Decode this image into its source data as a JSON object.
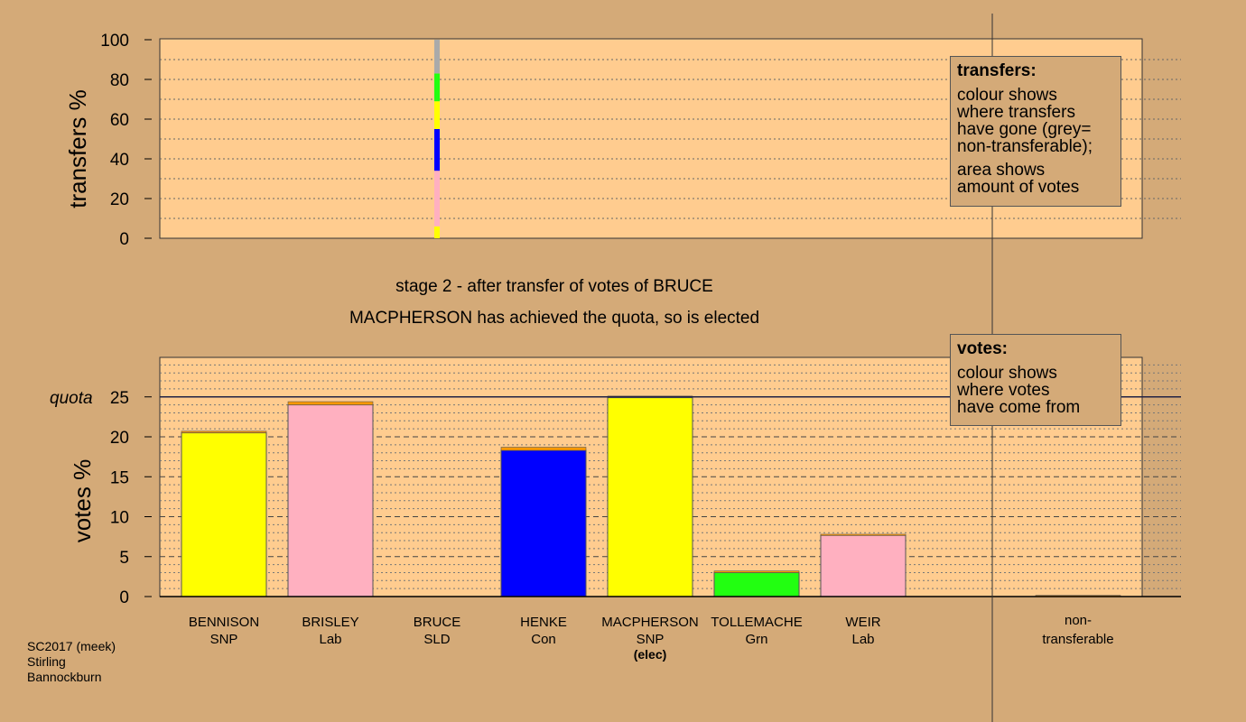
{
  "stage_title": "stage 2 - after transfer of votes of BRUCE",
  "stage_subtitle": "MACPHERSON has achieved the quota, so is elected",
  "legend_transfers": {
    "heading": "transfers:",
    "lines_a": [
      "colour shows",
      "where transfers",
      "have gone (grey=",
      "non-transferable);"
    ],
    "lines_b": [
      "area shows",
      "amount of votes"
    ]
  },
  "legend_votes": {
    "heading": "votes:",
    "lines": [
      "colour shows",
      "where votes",
      "have come from"
    ]
  },
  "footer": [
    "SC2017 (meek)",
    "Stirling",
    "Bannockburn"
  ],
  "colors": {
    "background": "#d4aa78",
    "plot": "#ffcc8f",
    "snp": "#ffff00",
    "lab": "#ffb0c0",
    "con": "#0000ff",
    "grn": "#22ff11",
    "ld": "#ff9900",
    "nontransferable": "#aaaaaa"
  },
  "chart_data": [
    {
      "type": "bar",
      "name_role": "transfers",
      "ylabel": "transfers %",
      "ylim": [
        0,
        100
      ],
      "yticks": [
        0,
        20,
        40,
        60,
        80,
        100
      ],
      "stacked_segments_for": "BRUCE",
      "segments": [
        {
          "from": 0,
          "to": 6,
          "color": "#ffff00"
        },
        {
          "from": 6,
          "to": 34,
          "color": "#ffb0c0"
        },
        {
          "from": 34,
          "to": 55,
          "color": "#0000ff"
        },
        {
          "from": 55,
          "to": 69,
          "color": "#ffff00"
        },
        {
          "from": 69,
          "to": 83,
          "color": "#22ff11"
        },
        {
          "from": 83,
          "to": 100,
          "color": "#aaaaaa"
        }
      ]
    },
    {
      "type": "bar",
      "name_role": "votes",
      "ylabel": "votes %",
      "ylim": [
        0,
        25
      ],
      "yticks": [
        0,
        5,
        10,
        15,
        20,
        25
      ],
      "quota_label": "quota",
      "quota": 25,
      "candidates": [
        {
          "name": "BENNISON",
          "party": "SNP",
          "base": 20.5,
          "transfer": 0.2,
          "color": "#ffff00",
          "elec": ""
        },
        {
          "name": "BRISLEY",
          "party": "Lab",
          "base": 24.0,
          "transfer": 0.4,
          "color": "#ffb0c0",
          "elec": ""
        },
        {
          "name": "BRUCE",
          "party": "SLD",
          "base": 0,
          "transfer": 0,
          "color": "#ff9900",
          "elec": ""
        },
        {
          "name": "HENKE",
          "party": "Con",
          "base": 18.3,
          "transfer": 0.4,
          "color": "#0000ff",
          "elec": ""
        },
        {
          "name": "MACPHERSON",
          "party": "SNP",
          "base": 24.9,
          "transfer": 0.2,
          "color": "#ffff00",
          "elec": "(elec)"
        },
        {
          "name": "TOLLEMACHE",
          "party": "Grn",
          "base": 3.0,
          "transfer": 0.2,
          "color": "#22ff11",
          "elec": ""
        },
        {
          "name": "WEIR",
          "party": "Lab",
          "base": 7.7,
          "transfer": 0.1,
          "color": "#ffb0c0",
          "elec": ""
        }
      ],
      "nontransferable": {
        "line1": "non-",
        "line2": "transferable",
        "value": 0.15
      }
    }
  ]
}
